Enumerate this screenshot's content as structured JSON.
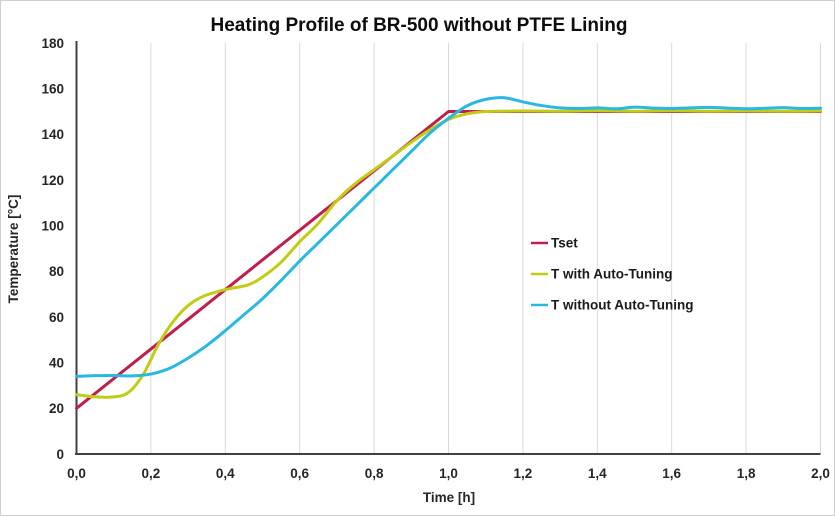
{
  "chart_data": {
    "type": "line",
    "title": "Heating Profile of BR-500 without PTFE Lining",
    "xlabel": "Time [h]",
    "ylabel": "Temperature [°C]",
    "xlim": [
      0,
      2
    ],
    "ylim": [
      0,
      180
    ],
    "x_ticks": [
      0,
      0.2,
      0.4,
      0.6,
      0.8,
      1.0,
      1.2,
      1.4,
      1.6,
      1.8,
      2.0
    ],
    "x_tick_labels": [
      "0,0",
      "0,2",
      "0,4",
      "0,6",
      "0,8",
      "1,0",
      "1,2",
      "1,4",
      "1,6",
      "1,8",
      "2,0"
    ],
    "y_ticks": [
      0,
      20,
      40,
      60,
      80,
      100,
      120,
      140,
      160,
      180
    ],
    "y_tick_labels": [
      "0",
      "20",
      "40",
      "60",
      "80",
      "100",
      "120",
      "140",
      "160",
      "180"
    ],
    "grid": "vertical-only",
    "legend_position": "inside-right",
    "series": [
      {
        "name": "Tset",
        "color": "#bf1e4a",
        "smooth": false,
        "points": [
          [
            0,
            20
          ],
          [
            1.0,
            150
          ],
          [
            2.0,
            150
          ]
        ]
      },
      {
        "name": "T with Auto-Tuning",
        "color": "#c2cb15",
        "smooth": true,
        "points": [
          [
            0,
            26
          ],
          [
            0.05,
            25
          ],
          [
            0.1,
            25
          ],
          [
            0.14,
            27
          ],
          [
            0.18,
            35
          ],
          [
            0.22,
            48
          ],
          [
            0.26,
            58
          ],
          [
            0.3,
            65
          ],
          [
            0.34,
            69
          ],
          [
            0.4,
            72
          ],
          [
            0.46,
            74
          ],
          [
            0.5,
            77.5
          ],
          [
            0.55,
            84
          ],
          [
            0.6,
            93
          ],
          [
            0.65,
            101
          ],
          [
            0.7,
            111
          ],
          [
            0.75,
            118.5
          ],
          [
            0.8,
            124.5
          ],
          [
            0.85,
            130.5
          ],
          [
            0.9,
            136.5
          ],
          [
            0.95,
            142
          ],
          [
            1.0,
            146.5
          ],
          [
            1.05,
            149
          ],
          [
            1.1,
            150
          ],
          [
            1.2,
            150.2
          ],
          [
            1.3,
            150.1
          ],
          [
            1.4,
            150.3
          ],
          [
            1.5,
            150.1
          ],
          [
            1.6,
            150.3
          ],
          [
            1.7,
            150.1
          ],
          [
            1.8,
            150.2
          ],
          [
            1.9,
            150.1
          ],
          [
            2.0,
            150.2
          ]
        ]
      },
      {
        "name": "T without Auto-Tuning",
        "color": "#29b8e0",
        "smooth": true,
        "points": [
          [
            0,
            34
          ],
          [
            0.05,
            34.3
          ],
          [
            0.1,
            34.4
          ],
          [
            0.15,
            34.2
          ],
          [
            0.2,
            35
          ],
          [
            0.25,
            37.5
          ],
          [
            0.3,
            42
          ],
          [
            0.35,
            47.5
          ],
          [
            0.4,
            54
          ],
          [
            0.45,
            61
          ],
          [
            0.5,
            68
          ],
          [
            0.55,
            76
          ],
          [
            0.6,
            84.5
          ],
          [
            0.65,
            92.5
          ],
          [
            0.7,
            100.5
          ],
          [
            0.75,
            108.5
          ],
          [
            0.8,
            116.5
          ],
          [
            0.85,
            124.5
          ],
          [
            0.9,
            132.5
          ],
          [
            0.95,
            140.5
          ],
          [
            1.0,
            147
          ],
          [
            1.05,
            152.5
          ],
          [
            1.1,
            155.3
          ],
          [
            1.15,
            156
          ],
          [
            1.2,
            154.2
          ],
          [
            1.25,
            152.6
          ],
          [
            1.3,
            151.6
          ],
          [
            1.35,
            151.3
          ],
          [
            1.4,
            151.6
          ],
          [
            1.45,
            151.2
          ],
          [
            1.5,
            151.9
          ],
          [
            1.55,
            151.5
          ],
          [
            1.6,
            151.3
          ],
          [
            1.65,
            151.6
          ],
          [
            1.7,
            151.8
          ],
          [
            1.75,
            151.5
          ],
          [
            1.8,
            151.2
          ],
          [
            1.85,
            151.4
          ],
          [
            1.9,
            151.7
          ],
          [
            1.95,
            151.3
          ],
          [
            2.0,
            151.5
          ]
        ]
      }
    ]
  },
  "colors": {
    "background": "#ffffff",
    "border": "#cfcfcf",
    "axis": "#404040",
    "grid": "#d9d9d9",
    "text": "#262626"
  }
}
